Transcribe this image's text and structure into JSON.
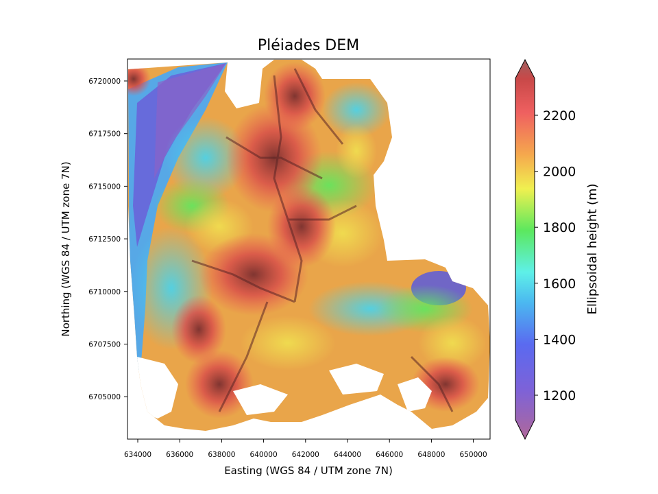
{
  "figure": {
    "title": "Pléiades DEM",
    "xlabel": "Easting (WGS 84 / UTM zone 7N)",
    "ylabel": "Northing (WGS 84 / UTM zone 7N)"
  },
  "axes": {
    "x_ticks": [
      "634000",
      "636000",
      "638000",
      "640000",
      "642000",
      "644000",
      "646000",
      "648000",
      "650000"
    ],
    "y_ticks": [
      "6720000",
      "6717500",
      "6715000",
      "6712500",
      "6710000",
      "6707500",
      "6705000"
    ]
  },
  "colorbar": {
    "label": "Ellipsoidal height (m)",
    "ticks": [
      "2200",
      "2000",
      "1800",
      "1600",
      "1400",
      "1200"
    ],
    "extend": "both",
    "colormap": [
      "#b0689a",
      "#6666ee",
      "#4bb8f0",
      "#5ef0e8",
      "#5ce85e",
      "#f0f050",
      "#f5a84d",
      "#ef6060",
      "#c84848",
      "#996060"
    ]
  },
  "map_features": {
    "coverage": "elevation model with hillshade, white = no data",
    "main_valley": "blue-purple glacier valley along west side",
    "ridges": "dark red high peaks in center"
  }
}
